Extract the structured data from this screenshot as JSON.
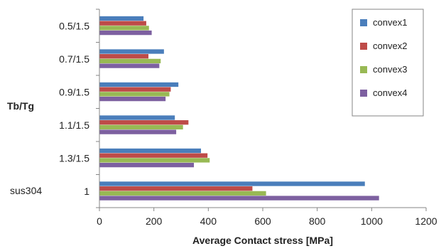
{
  "chart_data": {
    "type": "bar",
    "orientation": "horizontal",
    "xlabel": "Average Contact stress [MPa]",
    "ylabel": "Tb/Tg",
    "group_label": "sus304",
    "categories": [
      "0.5/1.5",
      "0.7/1.5",
      "0.9/1.5",
      "1.1/1.5",
      "1.3/1.5",
      "1"
    ],
    "series": [
      {
        "name": "convex1",
        "color": "#4a7ebb",
        "values": [
          162,
          237,
          290,
          277,
          373,
          975
        ]
      },
      {
        "name": "convex2",
        "color": "#be4b48",
        "values": [
          172,
          180,
          262,
          327,
          397,
          562
        ]
      },
      {
        "name": "convex3",
        "color": "#98b954",
        "values": [
          182,
          225,
          257,
          307,
          405,
          612
        ]
      },
      {
        "name": "convex4",
        "color": "#7d60a0",
        "values": [
          192,
          220,
          243,
          282,
          347,
          1027
        ]
      }
    ],
    "xlim": [
      0,
      1200
    ],
    "xticks": [
      0,
      200,
      400,
      600,
      800,
      1000,
      1200
    ],
    "grid": false,
    "legend_position": "top-right"
  }
}
